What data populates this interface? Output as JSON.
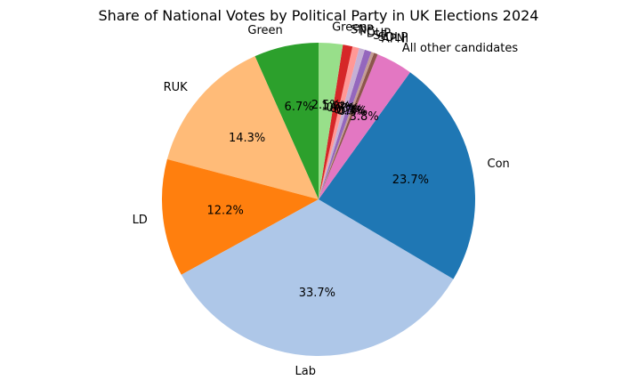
{
  "chart_data": {
    "type": "pie",
    "title": "Share of National Votes by Political Party in UK Elections 2024",
    "start_angle_deg": 90,
    "direction": "counterclockwise",
    "slices": [
      {
        "label": "Green",
        "value": 6.7,
        "pct_text": "6.7%",
        "color": "#2ca02c"
      },
      {
        "label": "RUK",
        "value": 14.3,
        "pct_text": "14.3%",
        "color": "#ffbb78"
      },
      {
        "label": "LD",
        "value": 12.2,
        "pct_text": "12.2%",
        "color": "#ff7f0e"
      },
      {
        "label": "Lab",
        "value": 33.7,
        "pct_text": "33.7%",
        "color": "#aec7e8"
      },
      {
        "label": "Con",
        "value": 23.7,
        "pct_text": "23.7%",
        "color": "#1f77b4"
      },
      {
        "label": "All other candidates",
        "value": 3.8,
        "pct_text": "3.8%",
        "color": "#e377c2"
      },
      {
        "label": "APNI",
        "value": 0.4,
        "pct_text": "0.4%",
        "color": "#8c564b"
      },
      {
        "label": "SDLP",
        "value": 0.3,
        "pct_text": "0.3%",
        "color": "#c49c94"
      },
      {
        "label": "SF",
        "value": 0.7,
        "pct_text": "0.7%",
        "color": "#9467bd"
      },
      {
        "label": "DUP",
        "value": 0.6,
        "pct_text": "0.6%",
        "color": "#c5b0d5"
      },
      {
        "label": "PC",
        "value": 0.7,
        "pct_text": "0.7%",
        "color": "#ff9896"
      },
      {
        "label": "SNP",
        "value": 1.0,
        "pct_text": "1.0%",
        "color": "#d62728"
      },
      {
        "label": "Green",
        "value": 2.5,
        "pct_text": "2.5%",
        "color": "#98df8a"
      }
    ]
  }
}
